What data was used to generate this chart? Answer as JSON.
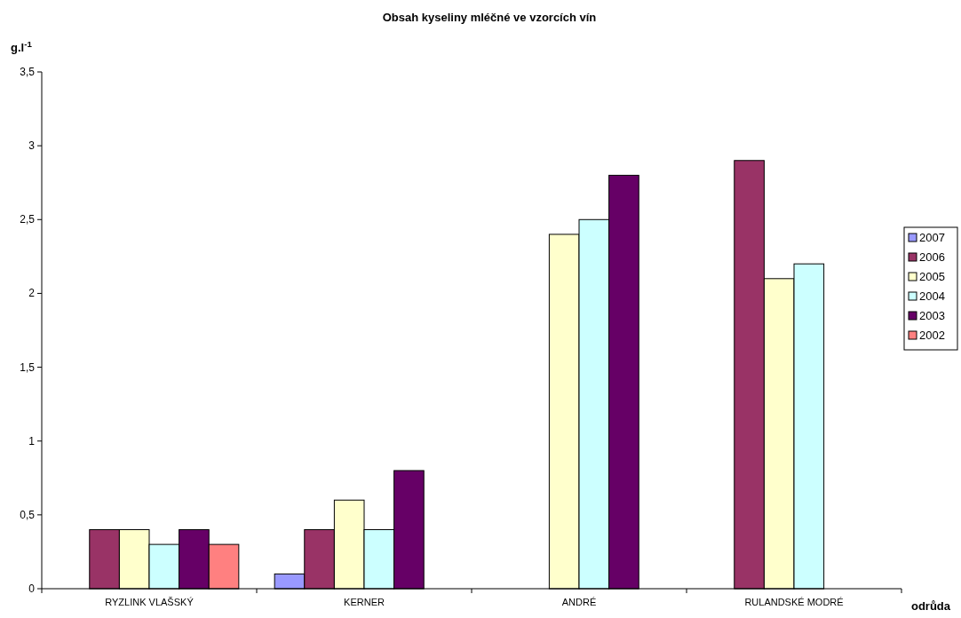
{
  "chart_data": {
    "type": "bar",
    "title": "Obsah kyseliny mléčné ve vzorcích vín",
    "xlabel": "odrůda",
    "ylabel": "g.l$^{-1}$",
    "categories": [
      "RYZLINK VLAŠSKÝ",
      "KERNER",
      "ANDRÉ",
      "RULANDSKÉ MODRÉ"
    ],
    "series": [
      {
        "name": "2007",
        "color": "#9999ff",
        "values": [
          null,
          0.1,
          null,
          null
        ]
      },
      {
        "name": "2006",
        "color": "#993366",
        "values": [
          0.4,
          0.4,
          null,
          2.9
        ]
      },
      {
        "name": "2005",
        "color": "#ffffcc",
        "values": [
          0.4,
          0.6,
          2.4,
          2.1
        ]
      },
      {
        "name": "2004",
        "color": "#ccffff",
        "values": [
          0.3,
          0.4,
          2.5,
          2.2
        ]
      },
      {
        "name": "2003",
        "color": "#660066",
        "values": [
          0.4,
          0.8,
          2.8,
          null
        ]
      },
      {
        "name": "2002",
        "color": "#ff8080",
        "values": [
          0.3,
          null,
          null,
          null
        ]
      }
    ],
    "ylim": [
      0,
      3.5
    ],
    "yticks": [
      0,
      {
        "value": 0.5,
        "label": "0,5"
      },
      1,
      {
        "value": 1.5,
        "label": "1,5"
      },
      2,
      {
        "value": 2.5,
        "label": "2,5"
      },
      3,
      {
        "value": 3.5,
        "label": "3,5"
      }
    ],
    "legend": "right",
    "grid": false
  }
}
